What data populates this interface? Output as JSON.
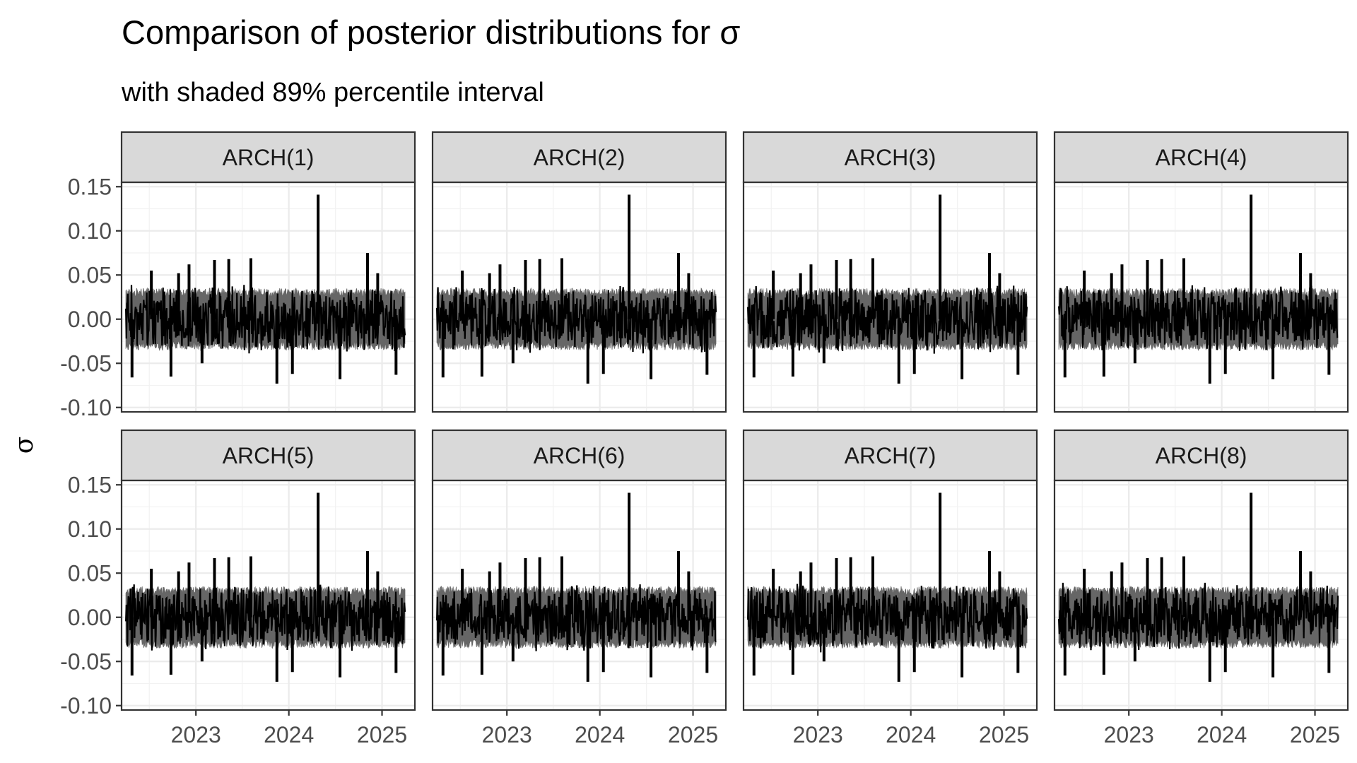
{
  "chart_data": {
    "type": "line",
    "title": "Comparison of posterior distributions for σ",
    "subtitle": "with shaded 89% percentile interval",
    "ylabel": "σ",
    "xlabel": "",
    "facets": [
      "ARCH(1)",
      "ARCH(2)",
      "ARCH(3)",
      "ARCH(4)",
      "ARCH(5)",
      "ARCH(6)",
      "ARCH(7)",
      "ARCH(8)"
    ],
    "x_ticks": [
      "2023",
      "2024",
      "2025"
    ],
    "y_ticks": [
      "0.15",
      "0.10",
      "0.05",
      "0.00",
      "-0.05",
      "-0.10"
    ],
    "ylim": [
      -0.105,
      0.155
    ],
    "xlim": [
      "2022-03-15",
      "2025-05-10"
    ],
    "x_range": [
      "2022-04-01",
      "2025-04-01"
    ],
    "band": {
      "upper": 0.03,
      "lower": -0.03,
      "color": "#666666"
    },
    "line_color": "#000000",
    "spikes": [
      {
        "date": "2022-04-25",
        "value": -0.066
      },
      {
        "date": "2022-07-10",
        "value": 0.055
      },
      {
        "date": "2022-09-25",
        "value": -0.065
      },
      {
        "date": "2022-10-25",
        "value": 0.052
      },
      {
        "date": "2022-12-05",
        "value": 0.062
      },
      {
        "date": "2023-01-25",
        "value": -0.05
      },
      {
        "date": "2023-03-15",
        "value": 0.067
      },
      {
        "date": "2023-05-10",
        "value": 0.068
      },
      {
        "date": "2023-08-05",
        "value": 0.069
      },
      {
        "date": "2023-11-15",
        "value": -0.073
      },
      {
        "date": "2024-01-15",
        "value": -0.062
      },
      {
        "date": "2024-04-25",
        "value": 0.141
      },
      {
        "date": "2024-07-20",
        "value": -0.068
      },
      {
        "date": "2024-11-05",
        "value": 0.075
      },
      {
        "date": "2024-12-15",
        "value": 0.052
      },
      {
        "date": "2025-02-25",
        "value": -0.063
      }
    ]
  }
}
